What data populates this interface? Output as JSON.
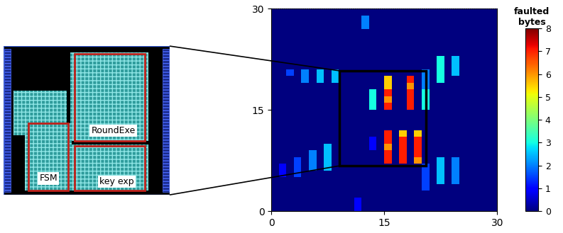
{
  "chart_data": {
    "type": "heatmap",
    "cells": [
      [
        0,
        0,
        0,
        0,
        0,
        0,
        0,
        0,
        0,
        0,
        0,
        1,
        0,
        0,
        0,
        0,
        0,
        0,
        0,
        0,
        0,
        0,
        0,
        0,
        0,
        0,
        0,
        0,
        0,
        0
      ],
      [
        0,
        0,
        0,
        0,
        0,
        0,
        0,
        0,
        0,
        0,
        0,
        1,
        0,
        0,
        0,
        0,
        0,
        0,
        0,
        0,
        0,
        0,
        0,
        0,
        0,
        0,
        0,
        0,
        0,
        0
      ],
      [
        0,
        0,
        0,
        0,
        0,
        0,
        0,
        0,
        0,
        0,
        0,
        0,
        0,
        0,
        0,
        0,
        0,
        0,
        0,
        0,
        0,
        0,
        0,
        0,
        0,
        0,
        0,
        0,
        0,
        0
      ],
      [
        0,
        0,
        0,
        0,
        0,
        0,
        0,
        0,
        0,
        0,
        0,
        0,
        0,
        0,
        0,
        0,
        0,
        0,
        0,
        0,
        1.5,
        0,
        0,
        0,
        0,
        0,
        0,
        0,
        0,
        0
      ],
      [
        0,
        0,
        0,
        0,
        0,
        0,
        0,
        0,
        0,
        0,
        0,
        0,
        0,
        0,
        0,
        0,
        0,
        0,
        0,
        0,
        1.5,
        0,
        2.5,
        0,
        2,
        0,
        0,
        0,
        0,
        0
      ],
      [
        0,
        1,
        0,
        1.5,
        0,
        0,
        0,
        0,
        0,
        0,
        0,
        0,
        0,
        0,
        0,
        0,
        0,
        0,
        0,
        0,
        1.5,
        0,
        2.5,
        0,
        2,
        0,
        0,
        0,
        0,
        0
      ],
      [
        0,
        1,
        0,
        1.5,
        0,
        2,
        0,
        2.5,
        0,
        0,
        0,
        0,
        0,
        0,
        0,
        0,
        0,
        0,
        0,
        0,
        1.5,
        0,
        2.5,
        0,
        2,
        0,
        0,
        0,
        0,
        0
      ],
      [
        0,
        0,
        0,
        1.5,
        0,
        2,
        0,
        2.5,
        0,
        0,
        0,
        0,
        0,
        0,
        0,
        7,
        0,
        7,
        0,
        6,
        0,
        0,
        2.5,
        0,
        2,
        0,
        0,
        0,
        0,
        0
      ],
      [
        0,
        0,
        0,
        0,
        0,
        2,
        0,
        2.5,
        0,
        0,
        0,
        0,
        0,
        0,
        0,
        7,
        0,
        7,
        0,
        7,
        0,
        0,
        0,
        0,
        0,
        0,
        0,
        0,
        0,
        0
      ],
      [
        0,
        0,
        0,
        0,
        0,
        0,
        0,
        2.5,
        0,
        0,
        0,
        0,
        0,
        1,
        0,
        6,
        0,
        7,
        0,
        7,
        0,
        0,
        0,
        0,
        0,
        0,
        0,
        0,
        0,
        0
      ],
      [
        0,
        0,
        0,
        0,
        0,
        0,
        0,
        0,
        0,
        0,
        0,
        0,
        0,
        1,
        0,
        7,
        0,
        7,
        0,
        7,
        0,
        0,
        0,
        0,
        0,
        0,
        0,
        0,
        0,
        0
      ],
      [
        0,
        0,
        0,
        0,
        0,
        0,
        0,
        0,
        0,
        0,
        0,
        0,
        0,
        0,
        0,
        7,
        0,
        5.5,
        0,
        5.5,
        0,
        0,
        0,
        0,
        0,
        0,
        0,
        0,
        0,
        0
      ],
      [
        0,
        0,
        0,
        0,
        0,
        0,
        0,
        0,
        0,
        0,
        0,
        0,
        0,
        0,
        0,
        0,
        0,
        0,
        0,
        0,
        0,
        0,
        0,
        0,
        0,
        0,
        0,
        0,
        0,
        0
      ],
      [
        0,
        0,
        0,
        0,
        0,
        0,
        0,
        0,
        0,
        0,
        0,
        0,
        0,
        0,
        0,
        0,
        0,
        0,
        0,
        0,
        0,
        0,
        0,
        0,
        0,
        0,
        0,
        0,
        0,
        0
      ],
      [
        0,
        0,
        0,
        0,
        0,
        0,
        0,
        0,
        0,
        0,
        0,
        0,
        0,
        0,
        0,
        0,
        0,
        0,
        0,
        0,
        0,
        0,
        0,
        0,
        0,
        0,
        0,
        0,
        0,
        0
      ],
      [
        0,
        0,
        0,
        0,
        0,
        0,
        0,
        0,
        0,
        0,
        0,
        0,
        0,
        3,
        0,
        7,
        0,
        0,
        7,
        0,
        3,
        0,
        0,
        0,
        0,
        0,
        0,
        0,
        0,
        0
      ],
      [
        0,
        0,
        0,
        0,
        0,
        0,
        0,
        0,
        0,
        0,
        0,
        0,
        0,
        3,
        0,
        6,
        0,
        0,
        7,
        0,
        3,
        0,
        0,
        0,
        0,
        0,
        0,
        0,
        0,
        0
      ],
      [
        0,
        0,
        0,
        0,
        0,
        0,
        0,
        0,
        0,
        0,
        0,
        0,
        0,
        3,
        0,
        7,
        0,
        0,
        7,
        0,
        3,
        0,
        0,
        0,
        0,
        0,
        0,
        0,
        0,
        0
      ],
      [
        0,
        0,
        0,
        0,
        0,
        0,
        0,
        0,
        0,
        0,
        0,
        0,
        0,
        0,
        0,
        5.5,
        0,
        0,
        6,
        0,
        2,
        0,
        0,
        0,
        0,
        0,
        0,
        0,
        0,
        0
      ],
      [
        0,
        0,
        0,
        0,
        2,
        0,
        2.5,
        0,
        2.5,
        0,
        0,
        0,
        0,
        0,
        0,
        5.5,
        0,
        0,
        7,
        0,
        2,
        0,
        3,
        0,
        0,
        0,
        0,
        0,
        0,
        0
      ],
      [
        0,
        0,
        1.5,
        0,
        2,
        0,
        2.5,
        0,
        2.5,
        0,
        0,
        0,
        0,
        0,
        0,
        0,
        0,
        0,
        0,
        0,
        2,
        0,
        3,
        0,
        2.5,
        0,
        0,
        0,
        0,
        0
      ],
      [
        0,
        0,
        0,
        0,
        0,
        0,
        0,
        0,
        0,
        0,
        0,
        0,
        0,
        0,
        0,
        0,
        0,
        0,
        0,
        0,
        0,
        0,
        3,
        0,
        2.5,
        0,
        0,
        0,
        0,
        0
      ],
      [
        0,
        0,
        0,
        0,
        0,
        0,
        0,
        0,
        0,
        0,
        0,
        0,
        0,
        0,
        0,
        0,
        0,
        0,
        0,
        0,
        0,
        0,
        3,
        0,
        2.5,
        0,
        0,
        0,
        0,
        0
      ],
      [
        0,
        0,
        0,
        0,
        0,
        0,
        0,
        0,
        0,
        0,
        0,
        0,
        0,
        0,
        0,
        0,
        0,
        0,
        0,
        0,
        0,
        0,
        0,
        0,
        0,
        0,
        0,
        0,
        0,
        0
      ],
      [
        0,
        0,
        0,
        0,
        0,
        0,
        0,
        0,
        0,
        0,
        0,
        0,
        0,
        0,
        0,
        0,
        0,
        0,
        0,
        0,
        0,
        0,
        0,
        0,
        0,
        0,
        0,
        0,
        0,
        0
      ],
      [
        0,
        0,
        0,
        0,
        0,
        0,
        0,
        0,
        0,
        0,
        0,
        0,
        0,
        0,
        0,
        0,
        0,
        0,
        0,
        0,
        0,
        0,
        0,
        0,
        0,
        0,
        0,
        0,
        0,
        0
      ],
      [
        0,
        0,
        0,
        0,
        0,
        0,
        0,
        0,
        0,
        0,
        0,
        0,
        0,
        0,
        0,
        0,
        0,
        0,
        0,
        0,
        0,
        0,
        0,
        0,
        0,
        0,
        0,
        0,
        0,
        0
      ],
      [
        0,
        0,
        0,
        0,
        0,
        0,
        0,
        0,
        0,
        0,
        0,
        0,
        2,
        0,
        0,
        0,
        0,
        0,
        0,
        0,
        0,
        0,
        0,
        0,
        0,
        0,
        0,
        0,
        0,
        0
      ],
      [
        0,
        0,
        0,
        0,
        0,
        0,
        0,
        0,
        0,
        0,
        0,
        0,
        2,
        0,
        0,
        0,
        0,
        0,
        0,
        0,
        0,
        0,
        0,
        0,
        0,
        0,
        0,
        0,
        0,
        0
      ],
      [
        0,
        0,
        0,
        0,
        0,
        0,
        0,
        0,
        0,
        0,
        0,
        0,
        0,
        0,
        0,
        0,
        0,
        0,
        0,
        0,
        0,
        0,
        0,
        0,
        0,
        0,
        0,
        0,
        0,
        0
      ]
    ],
    "xlim": [
      0,
      30
    ],
    "ylim": [
      0,
      30
    ],
    "xticks": [
      0,
      15,
      30
    ],
    "yticks": [
      0,
      15,
      30
    ],
    "colorbar_title": "faulted\nbytes",
    "colorbar_lim": [
      0,
      8
    ],
    "colorbar_ticks": [
      0,
      1,
      2,
      3,
      4,
      5,
      6,
      7,
      8
    ]
  },
  "chip_layout": {
    "blocks": [
      {
        "label": "RoundExe"
      },
      {
        "label": "FSM"
      },
      {
        "label": "key exp"
      }
    ]
  }
}
